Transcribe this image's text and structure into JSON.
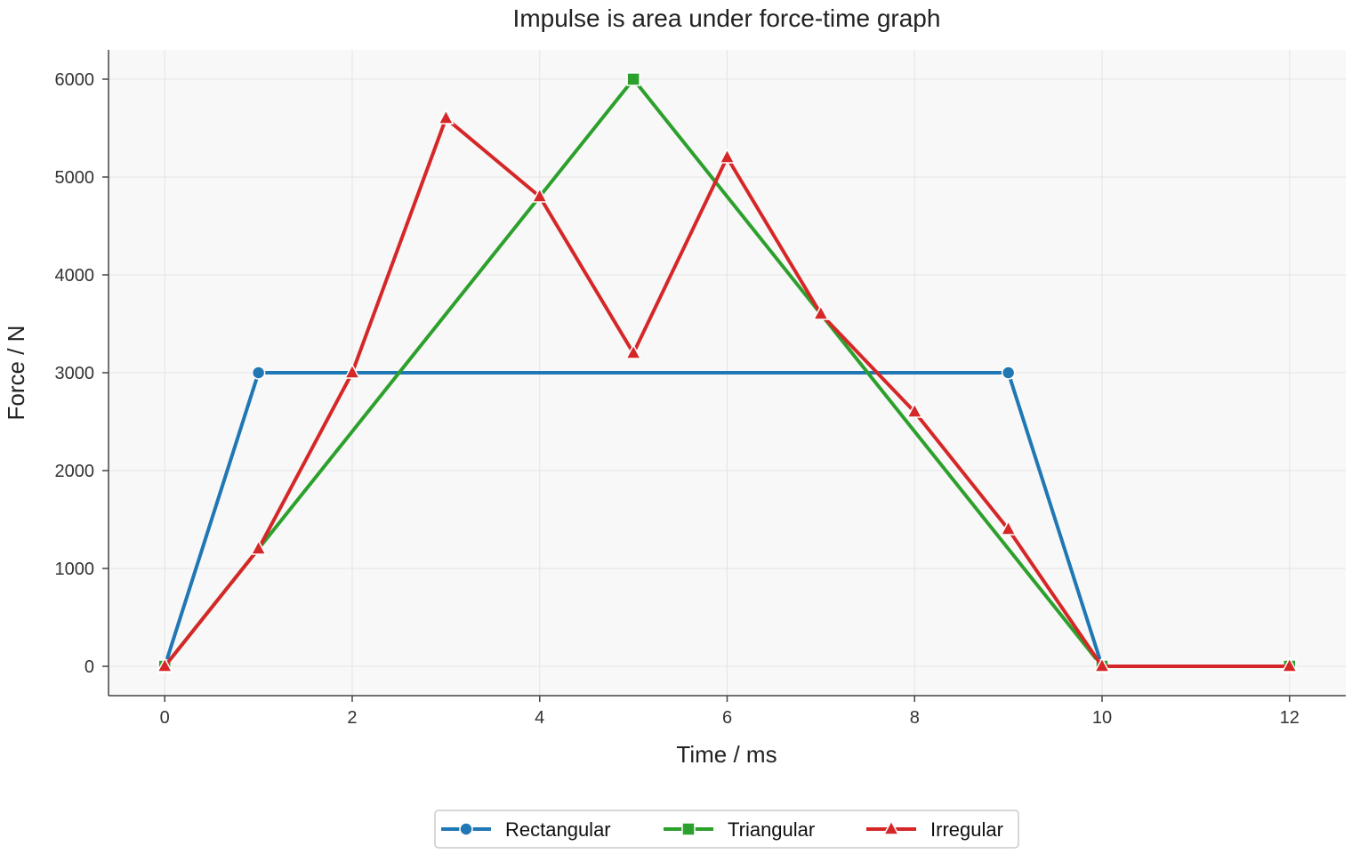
{
  "chart_data": {
    "type": "line",
    "title": "Impulse is area under force-time graph",
    "xlabel": "Time / ms",
    "ylabel": "Force / N",
    "xlim": [
      -0.6,
      12.6
    ],
    "ylim": [
      -300,
      6300
    ],
    "xticks": [
      0,
      2,
      4,
      6,
      8,
      10,
      12
    ],
    "yticks": [
      0,
      1000,
      2000,
      3000,
      4000,
      5000,
      6000
    ],
    "grid": true,
    "legend": "bottom-center",
    "series": [
      {
        "name": "Rectangular",
        "color": "#1f77b4",
        "marker": "circle",
        "x": [
          0,
          1,
          9,
          10
        ],
        "y": [
          0,
          3000,
          3000,
          0
        ]
      },
      {
        "name": "Triangular",
        "color": "#2ca02c",
        "marker": "square",
        "x": [
          0,
          5,
          10,
          12
        ],
        "y": [
          0,
          6000,
          0,
          0
        ]
      },
      {
        "name": "Irregular",
        "color": "#d62728",
        "marker": "triangle",
        "x": [
          0,
          1,
          2,
          3,
          4,
          5,
          6,
          7,
          8,
          9,
          10,
          12
        ],
        "y": [
          0,
          1200,
          3000,
          5600,
          4800,
          3200,
          5200,
          3600,
          2600,
          1400,
          0,
          0
        ]
      }
    ]
  }
}
